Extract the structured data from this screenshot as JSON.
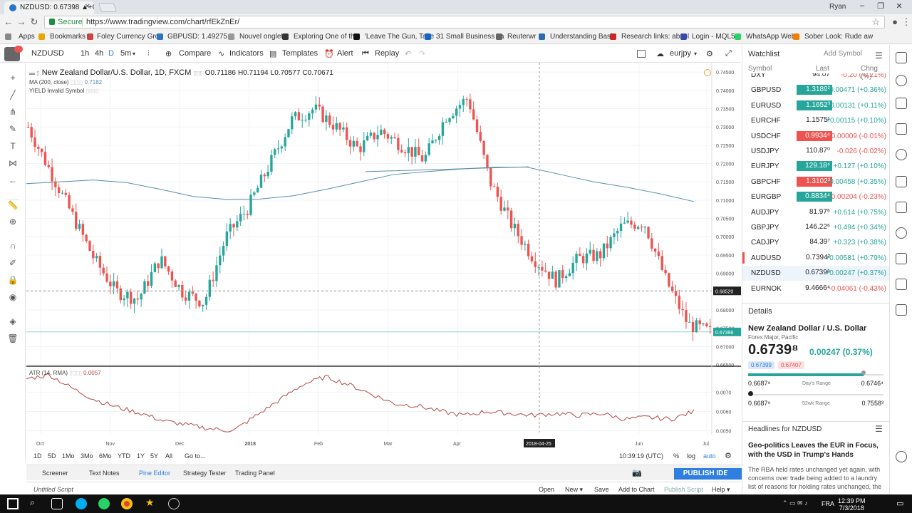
{
  "browser": {
    "tab_title": "NZDUSD: 0.67398 ▲+0.3",
    "address_secure": "Secure",
    "url": "https://www.tradingview.com/chart/rfEkZnEr/",
    "user": "Ryan",
    "bookmarks": [
      "Apps",
      "Bookmarks",
      "Foley Currency Grou",
      "GBPUSD: 1.49275 ▲",
      "Nouvel onglet",
      "Exploring One of the",
      "'Leave The Gun, Take",
      "31 Small Business Ta",
      "Reuterwr",
      "Understanding Basic",
      "Research links: absol",
      "Login - MQL5",
      "WhatsApp Web",
      "Sober Look: Rude aw"
    ]
  },
  "toolbar": {
    "symbol": "NZDUSD",
    "intervals": [
      "1h",
      "4h",
      "D",
      "5m"
    ],
    "compare": "Compare",
    "indicators": "Indicators",
    "templates": "Templates",
    "alert": "Alert",
    "replay": "Replay",
    "layout_name": "eurjpy"
  },
  "legend": {
    "title": "New Zealand Dollar/U.S. Dollar, 1D, FXCM",
    "open": "O0.71186",
    "high": "H0.71194",
    "low": "L0.70577",
    "close": "C0.70671",
    "ma": "MA (200, close)",
    "ma_value": "0.7182",
    "yield": "YIELD Invalid Symbol",
    "atr": "ATR (14, RMA)",
    "atr_value": "0.0057"
  },
  "chart_data": {
    "type": "candlestick",
    "title": "New Zealand Dollar/U.S. Dollar, 1D, FXCM",
    "price_axis_ticks": [
      "0.74500",
      "0.74000",
      "0.73500",
      "0.73000",
      "0.72500",
      "0.72000",
      "0.71500",
      "0.71000",
      "0.70500",
      "0.70000",
      "0.69500",
      "0.69000",
      "0.68500",
      "0.68000",
      "0.67500",
      "0.67000",
      "0.66500"
    ],
    "ylim": [
      0.665,
      0.746
    ],
    "crosshair_price": "0.68520",
    "current_price": "0.67398",
    "time_axis_ticks": [
      "Oct",
      "Nov",
      "Dec",
      "2018",
      "Feb",
      "Mar",
      "Apr",
      "Jun",
      "Jul"
    ],
    "crosshair_date": "2018-04-25",
    "ma_series": [
      0.7145,
      0.715,
      0.7155,
      0.7148,
      0.713,
      0.711,
      0.7102,
      0.7103,
      0.7112,
      0.713,
      0.715,
      0.717,
      0.7178,
      0.7185,
      0.719,
      0.719,
      0.717,
      0.715,
      0.7135,
      0.7117,
      0.7096
    ],
    "close_series": [
      0.73,
      0.718,
      0.706,
      0.694,
      0.685,
      0.683,
      0.694,
      0.685,
      0.682,
      0.7,
      0.708,
      0.72,
      0.732,
      0.735,
      0.73,
      0.724,
      0.729,
      0.725,
      0.721,
      0.733,
      0.738,
      0.715,
      0.703,
      0.694,
      0.688,
      0.694,
      0.695,
      0.703,
      0.704,
      0.688,
      0.676,
      0.674
    ],
    "atr_axis_ticks": [
      "0.0070",
      "0.0060",
      "0.0050"
    ],
    "atr_ylim": [
      0.0048,
      0.0082
    ],
    "atr_series": [
      0.0077,
      0.0079,
      0.0072,
      0.0066,
      0.0062,
      0.0059,
      0.0055,
      0.0053,
      0.0051,
      0.005,
      0.0058,
      0.0066,
      0.0074,
      0.0078,
      0.0074,
      0.0069,
      0.0064,
      0.0063,
      0.006,
      0.0058,
      0.006,
      0.0059,
      0.0058,
      0.0059,
      0.0058,
      0.0059,
      0.0056,
      0.0057,
      0.0056,
      0.006
    ]
  },
  "rangebar": {
    "ranges": [
      "1D",
      "5D",
      "1Mo",
      "3Mo",
      "6Mo",
      "YTD",
      "1Y",
      "5Y",
      "All"
    ],
    "goto": "Go to...",
    "clock": "10:39:19 (UTC)",
    "pct": "%",
    "log": "log",
    "auto": "auto"
  },
  "bottom_tabs": [
    "Screener",
    "Text Notes",
    "Pine Editor",
    "Strategy Tester",
    "Trading Panel"
  ],
  "publish_label": "PUBLISH IDEA",
  "script": {
    "name": "Untitled Script",
    "actions": [
      "Open",
      "New ▾",
      "Save",
      "Add to Chart",
      "Publish Script",
      "Help ▾"
    ]
  },
  "watchlist": {
    "title": "Watchlist",
    "add_symbol": "Add Symbol",
    "columns": [
      "Symbol",
      "Last",
      "Chng (%)"
    ],
    "rows": [
      {
        "symbol": "DXY",
        "last": "94.07",
        "change": "-0.20 (-0.21%)",
        "dir": "neg",
        "hl": ""
      },
      {
        "symbol": "GBPUSD",
        "last": "1.3189²",
        "change": "+0.00471 (+0.36%)",
        "dir": "pos",
        "hl": "up"
      },
      {
        "symbol": "EURUSD",
        "last": "1.1652³",
        "change": "+0.00131 (+0.11%)",
        "dir": "pos",
        "hl": "up"
      },
      {
        "symbol": "EURCHF",
        "last": "1.1575¹",
        "change": "+0.00115 (+0.10%)",
        "dir": "pos",
        "hl": ""
      },
      {
        "symbol": "USDCHF",
        "last": "0.9934⁴",
        "change": "-0.00009 (-0.01%)",
        "dir": "neg",
        "hl": "dn"
      },
      {
        "symbol": "USDJPY",
        "last": "110.87⁰",
        "change": "-0.026 (-0.02%)",
        "dir": "neg",
        "hl": ""
      },
      {
        "symbol": "EURJPY",
        "last": "129.18⁴",
        "change": "+0.127 (+0.10%)",
        "dir": "pos",
        "hl": "up"
      },
      {
        "symbol": "GBPCHF",
        "last": "1.3102³",
        "change": "+0.00458 (+0.35%)",
        "dir": "pos",
        "hl": "dn"
      },
      {
        "symbol": "EURGBP",
        "last": "0.8834⁴",
        "change": "-0.00204 (-0.23%)",
        "dir": "neg",
        "hl": "up"
      },
      {
        "symbol": "AUDJPY",
        "last": "81.97⁶",
        "change": "+0.614 (+0.75%)",
        "dir": "pos",
        "hl": ""
      },
      {
        "symbol": "GBPJPY",
        "last": "146.22⁶",
        "change": "+0.494 (+0.34%)",
        "dir": "pos",
        "hl": ""
      },
      {
        "symbol": "CADJPY",
        "last": "84.39⁷",
        "change": "+0.323 (+0.38%)",
        "dir": "pos",
        "hl": ""
      },
      {
        "symbol": "AUDUSD",
        "last": "0.7394²",
        "change": "+0.00581 (+0.79%)",
        "dir": "pos",
        "hl": ""
      },
      {
        "symbol": "NZDUSD",
        "last": "0.6739⁸",
        "change": "+0.00247 (+0.37%)",
        "dir": "pos",
        "hl": ""
      },
      {
        "symbol": "EURNOK",
        "last": "9.4666⁴",
        "change": "-0.04061 (-0.43%)",
        "dir": "neg",
        "hl": ""
      }
    ]
  },
  "details": {
    "header": "Details",
    "name": "New Zealand Dollar / U.S. Dollar",
    "subtitle": "Forex Major, Pacific",
    "price": "0.6739⁸",
    "change": "0.00247 (0.37%)",
    "bid": "0.67399",
    "ask": "0.67407",
    "day_low": "0.6687⁹",
    "day_label": "Day's Range",
    "day_high": "0.6746⁴",
    "wk_low": "0.6687⁹",
    "wk_label": "52wk Range",
    "wk_high": "0.7558³",
    "day_range_position": 0.85,
    "wk_range_position": 0.0
  },
  "headlines": {
    "header": "Headlines for NZDUSD",
    "title": "Geo-politics Leaves the EUR in Focus, with the USD in Trump's Hands",
    "body": "The RBA held rates unchanged yet again, with concerns over trade being added to a laundry list of reasons for holding rates unchanged, the"
  },
  "tray": {
    "lang": "FRA",
    "time": "12:39 PM",
    "date": "7/3/2018"
  },
  "colors": {
    "up": "#26a69a",
    "down": "#ef5350",
    "ma": "#5b8fa8",
    "atr": "#b54848",
    "accent": "#2f7fe0"
  }
}
